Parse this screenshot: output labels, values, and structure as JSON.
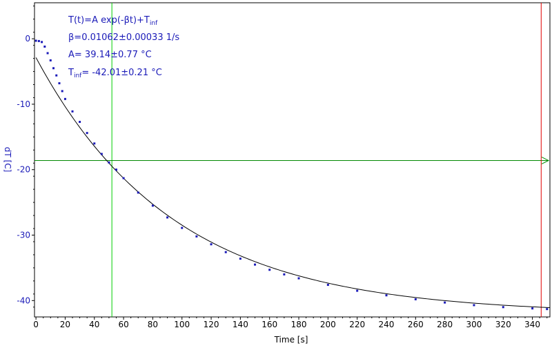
{
  "chart_data": {
    "type": "scatter",
    "xlabel": "Time [s]",
    "ylabel": "dT [C]",
    "xlim": [
      -1,
      352
    ],
    "ylim": [
      -42.5,
      5.5
    ],
    "xticks": [
      0,
      20,
      40,
      60,
      80,
      100,
      120,
      140,
      160,
      180,
      200,
      220,
      240,
      260,
      280,
      300,
      320,
      340
    ],
    "yticks": [
      0,
      -10,
      -20,
      -30,
      -40
    ],
    "fit": {
      "A": 39.14,
      "beta": 0.01062,
      "T_inf": -42.01
    },
    "cursors": {
      "vertical_x": 52,
      "horizontal_y": -18.6,
      "marker_x": 346
    },
    "series": [
      {
        "role": "measured",
        "points": [
          [
            0,
            -0.3
          ],
          [
            2,
            -0.35
          ],
          [
            4,
            -0.5
          ],
          [
            6,
            -1.2
          ],
          [
            8,
            -2.2
          ],
          [
            10,
            -3.3
          ],
          [
            12,
            -4.5
          ],
          [
            14,
            -5.6
          ],
          [
            16,
            -6.8
          ],
          [
            18,
            -8.0
          ],
          [
            20,
            -9.2
          ],
          [
            25,
            -11.1
          ],
          [
            30,
            -12.7
          ],
          [
            35,
            -14.4
          ],
          [
            40,
            -16.0
          ],
          [
            45,
            -17.6
          ],
          [
            50,
            -18.9
          ],
          [
            55,
            -20.0
          ],
          [
            60,
            -21.3
          ],
          [
            70,
            -23.5
          ],
          [
            80,
            -25.5
          ],
          [
            90,
            -27.3
          ],
          [
            100,
            -28.9
          ],
          [
            110,
            -30.2
          ],
          [
            120,
            -31.4
          ],
          [
            130,
            -32.6
          ],
          [
            140,
            -33.6
          ],
          [
            150,
            -34.5
          ],
          [
            160,
            -35.3
          ],
          [
            170,
            -36.0
          ],
          [
            180,
            -36.6
          ],
          [
            200,
            -37.6
          ],
          [
            220,
            -38.5
          ],
          [
            240,
            -39.2
          ],
          [
            260,
            -39.8
          ],
          [
            280,
            -40.3
          ],
          [
            300,
            -40.7
          ],
          [
            320,
            -41.0
          ],
          [
            340,
            -41.2
          ],
          [
            350,
            -41.3
          ]
        ]
      }
    ],
    "annotations": {
      "model": "T(t)=A exp(-βt)+T",
      "model_sub": "inf",
      "beta": "β=0.01062±0.00033 1/s",
      "amp": "A= 39.14±0.77 °C",
      "tinf_prefix": "T",
      "tinf_sub": "inf",
      "tinf_value": "= -42.01±0.21 °C"
    },
    "colors": {
      "data": "#1a1ab8",
      "fit": "#000000",
      "vertical_cursor": "#00cc00",
      "horizontal_cursor": "#008800",
      "marker": "#e00000"
    }
  }
}
